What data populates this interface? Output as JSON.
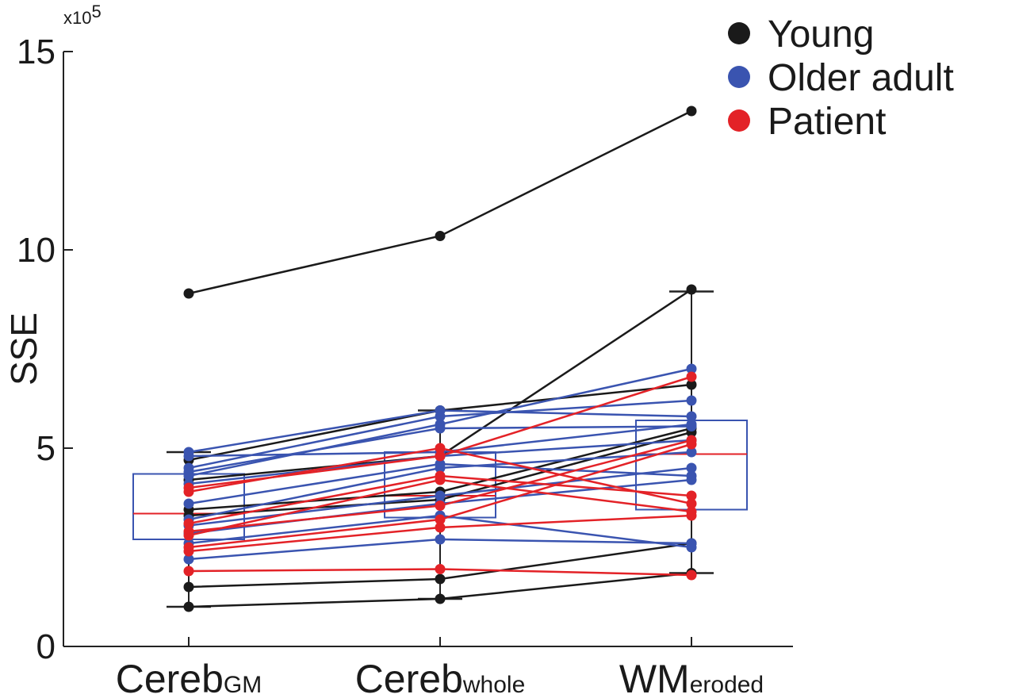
{
  "chart_data": {
    "type": "line",
    "ylabel": "SSE",
    "y_exponent_label": "x10",
    "y_exponent_power": "5",
    "ylim": [
      0,
      15
    ],
    "yticks": [
      "0",
      "5",
      "10",
      "15"
    ],
    "categories": [
      {
        "main": "Cereb",
        "sub": "GM"
      },
      {
        "main": "Cereb",
        "sub": "whole"
      },
      {
        "main": "WM",
        "sub": "eroded"
      }
    ],
    "legend": {
      "position": "top-right",
      "entries": [
        {
          "label": "Young",
          "color": "#1a1a1a"
        },
        {
          "label": "Older adult",
          "color": "#3a54b0"
        },
        {
          "label": "Patient",
          "color": "#e32227"
        }
      ]
    },
    "colors": {
      "young": "#1a1a1a",
      "older": "#3a54b0",
      "patient": "#e32227",
      "box": "#3a54b0",
      "median": "#e32227"
    },
    "series": [
      {
        "group": "young",
        "values": [
          8.9,
          10.35,
          13.5
        ]
      },
      {
        "group": "young",
        "values": [
          1.0,
          1.2,
          1.85
        ]
      },
      {
        "group": "young",
        "values": [
          1.5,
          1.7,
          2.6
        ]
      },
      {
        "group": "young",
        "values": [
          3.3,
          3.7,
          5.4
        ]
      },
      {
        "group": "young",
        "values": [
          3.45,
          3.9,
          5.5
        ]
      },
      {
        "group": "young",
        "values": [
          4.2,
          4.8,
          9.0
        ]
      },
      {
        "group": "young",
        "values": [
          4.7,
          5.95,
          6.6
        ]
      },
      {
        "group": "older",
        "values": [
          4.9,
          5.95,
          5.8
        ]
      },
      {
        "group": "older",
        "values": [
          4.5,
          5.8,
          6.2
        ]
      },
      {
        "group": "older",
        "values": [
          4.3,
          5.6,
          7.0
        ]
      },
      {
        "group": "older",
        "values": [
          4.4,
          5.5,
          5.55
        ]
      },
      {
        "group": "older",
        "values": [
          4.1,
          4.8,
          5.2
        ]
      },
      {
        "group": "older",
        "values": [
          3.6,
          4.6,
          4.3
        ]
      },
      {
        "group": "older",
        "values": [
          3.2,
          4.5,
          4.9
        ]
      },
      {
        "group": "older",
        "values": [
          3.05,
          3.8,
          4.5
        ]
      },
      {
        "group": "older",
        "values": [
          2.85,
          3.6,
          4.2
        ]
      },
      {
        "group": "older",
        "values": [
          2.6,
          3.3,
          2.5
        ]
      },
      {
        "group": "older",
        "values": [
          2.2,
          2.7,
          2.6
        ]
      },
      {
        "group": "older",
        "values": [
          4.8,
          4.9,
          5.6
        ]
      },
      {
        "group": "patient",
        "values": [
          4.0,
          4.8,
          6.8
        ]
      },
      {
        "group": "patient",
        "values": [
          3.9,
          5.0,
          3.6
        ]
      },
      {
        "group": "patient",
        "values": [
          3.1,
          4.3,
          3.8
        ]
      },
      {
        "group": "patient",
        "values": [
          2.9,
          3.55,
          5.2
        ]
      },
      {
        "group": "patient",
        "values": [
          2.8,
          4.2,
          3.4
        ]
      },
      {
        "group": "patient",
        "values": [
          2.5,
          3.2,
          5.1
        ]
      },
      {
        "group": "patient",
        "values": [
          2.4,
          3.0,
          3.3
        ]
      },
      {
        "group": "patient",
        "values": [
          1.9,
          1.95,
          1.8
        ]
      }
    ],
    "boxplots": [
      {
        "q1": 2.7,
        "median": 3.35,
        "q3": 4.35,
        "whisker_low": 1.0,
        "whisker_high": 4.9
      },
      {
        "q1": 3.25,
        "median": 3.8,
        "q3": 4.9,
        "whisker_low": 1.2,
        "whisker_high": 5.95
      },
      {
        "q1": 3.45,
        "median": 4.85,
        "q3": 5.7,
        "whisker_low": 1.85,
        "whisker_high": 8.95
      }
    ]
  }
}
